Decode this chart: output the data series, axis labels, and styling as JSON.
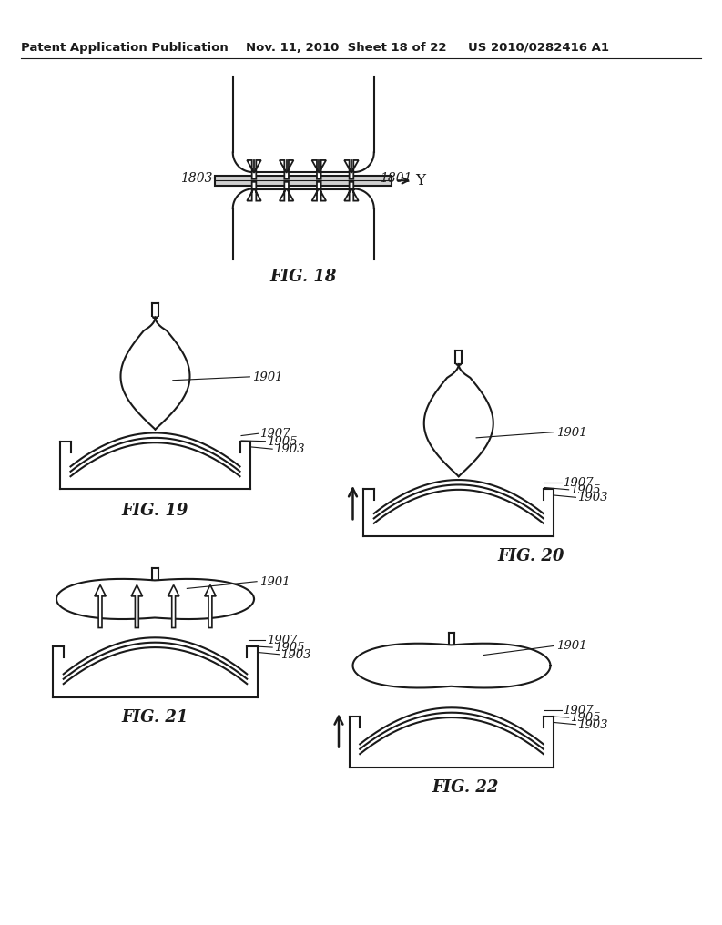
{
  "header_left": "Patent Application Publication",
  "header_mid": "Nov. 11, 2010  Sheet 18 of 22",
  "header_right": "US 2010/0282416 A1",
  "fig18_label": "FIG. 18",
  "fig19_label": "FIG. 19",
  "fig20_label": "FIG. 20",
  "fig21_label": "FIG. 21",
  "fig22_label": "FIG. 22",
  "label_1801": "1801",
  "label_1803": "1803",
  "label_1901": "1901",
  "label_1903": "1903",
  "label_1905": "1905",
  "label_1907": "1907",
  "bg_color": "#ffffff",
  "line_color": "#1a1a1a",
  "label_color": "#1a1a1a"
}
